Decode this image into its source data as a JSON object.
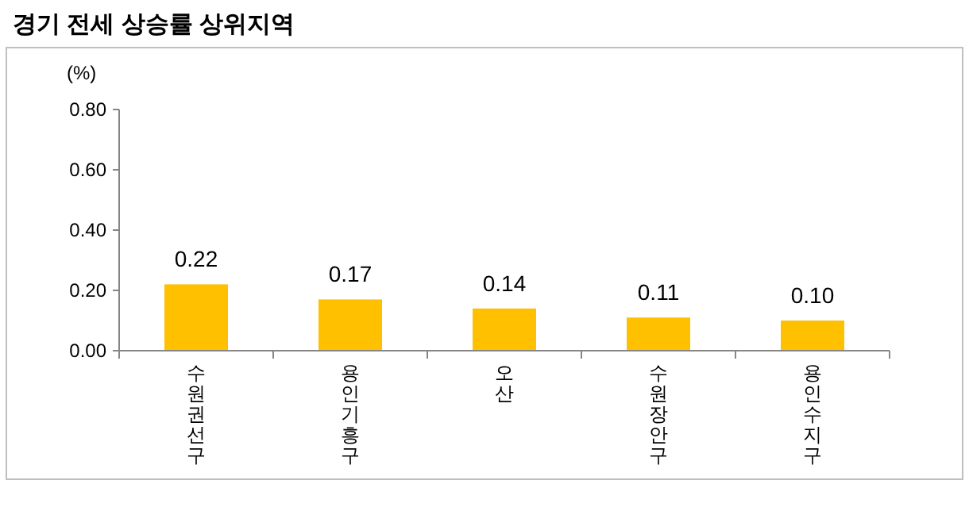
{
  "chart_data": {
    "type": "bar",
    "title": "경기 전세 상승률 상위지역",
    "ylabel": "(%)",
    "categories": [
      "수원권선구",
      "용인기흥구",
      "오산",
      "수원장안구",
      "용인수지구"
    ],
    "values": [
      0.22,
      0.17,
      0.14,
      0.11,
      0.1
    ],
    "value_labels": [
      "0.22",
      "0.17",
      "0.14",
      "0.11",
      "0.10"
    ],
    "color": "#ffc000",
    "ylim": [
      0,
      0.8
    ],
    "yticks": [
      {
        "value": 0,
        "label": "0.00"
      },
      {
        "value": 0.2,
        "label": "0.20"
      },
      {
        "value": 0.4,
        "label": "0.40"
      },
      {
        "value": 0.6,
        "label": "0.60"
      },
      {
        "value": 0.8,
        "label": "0.80"
      }
    ]
  }
}
